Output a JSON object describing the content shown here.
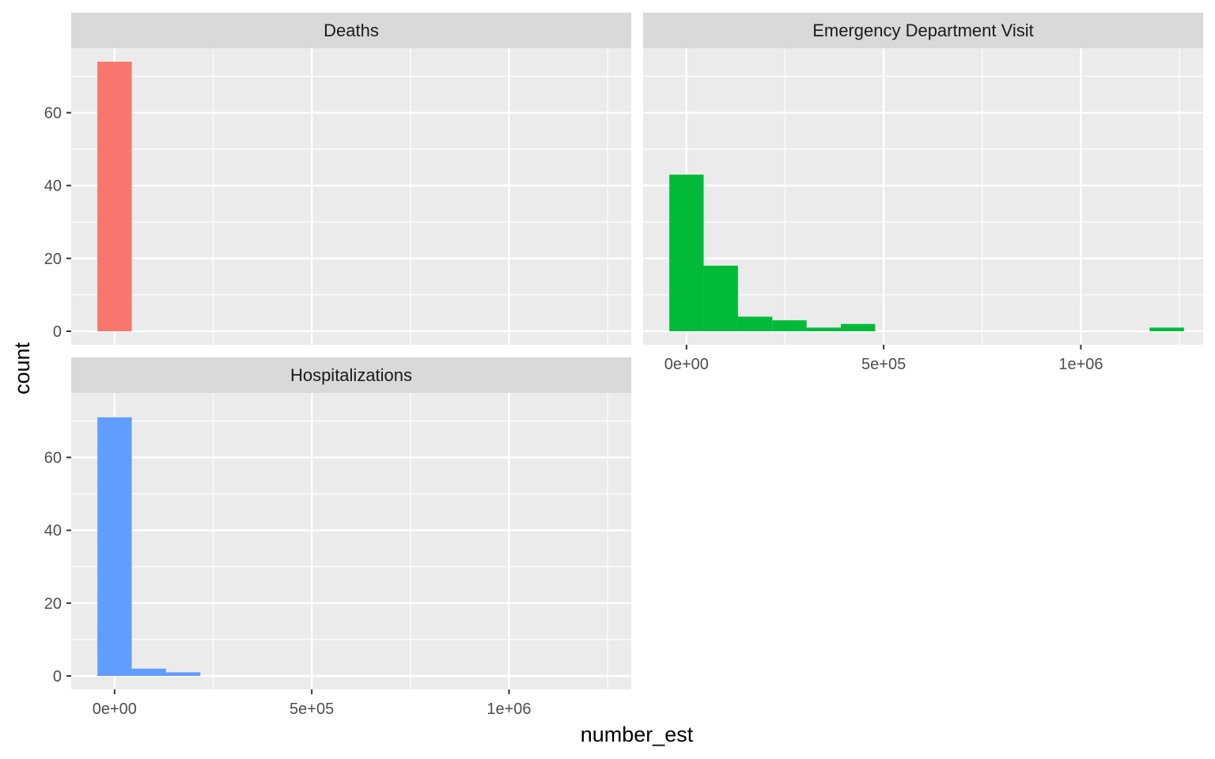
{
  "chart_data": {
    "type": "bar",
    "subtype": "faceted-histogram",
    "xlabel": "number_est",
    "ylabel": "count",
    "xlim": [
      -110000,
      1310000
    ],
    "x_ticks": [
      {
        "value": 0,
        "label": "0e+00"
      },
      {
        "value": 500000,
        "label": "5e+05"
      },
      {
        "value": 1000000,
        "label": "1e+06"
      }
    ],
    "x_minor_ticks": [
      -250000,
      250000,
      750000,
      1250000
    ],
    "bin_width": 87000,
    "grid": true,
    "legend": "none",
    "panels": [
      {
        "name": "Deaths",
        "color": "#F8766D",
        "ylim": [
          -3.7,
          77.7
        ],
        "y_ticks": [
          0,
          20,
          40,
          60
        ],
        "bins": [
          {
            "x": 0,
            "count": 74
          }
        ]
      },
      {
        "name": "Emergency Department Visit",
        "color": "#00BA38",
        "ylim": [
          -3.7,
          77.7
        ],
        "y_ticks": [
          0,
          20,
          40,
          60
        ],
        "bins": [
          {
            "x": 0,
            "count": 43
          },
          {
            "x": 87000,
            "count": 18
          },
          {
            "x": 174000,
            "count": 4
          },
          {
            "x": 261000,
            "count": 3
          },
          {
            "x": 348000,
            "count": 1
          },
          {
            "x": 435000,
            "count": 2
          },
          {
            "x": 1218000,
            "count": 1
          }
        ]
      },
      {
        "name": "Hospitalizations",
        "color": "#619CFF",
        "ylim": [
          -3.7,
          77.7
        ],
        "y_ticks": [
          0,
          20,
          40,
          60
        ],
        "bins": [
          {
            "x": 0,
            "count": 71
          },
          {
            "x": 87000,
            "count": 2
          },
          {
            "x": 174000,
            "count": 1
          }
        ]
      }
    ]
  }
}
